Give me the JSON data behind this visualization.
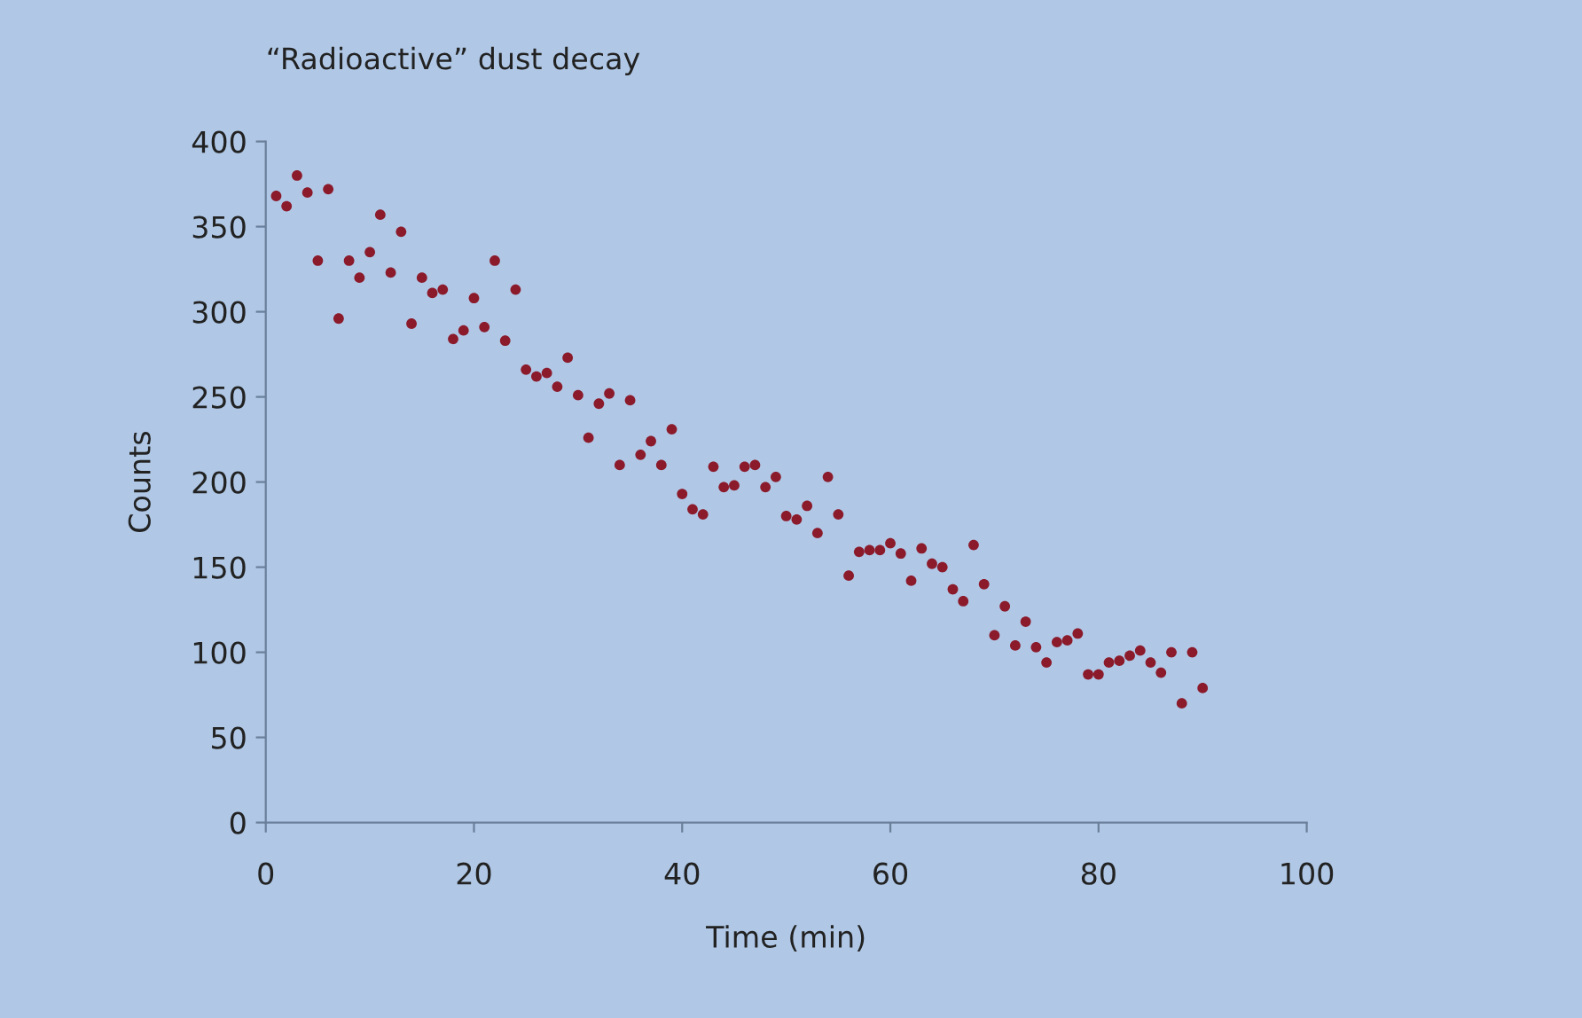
{
  "chart_data": {
    "type": "scatter",
    "title": "“Radioactive” dust decay",
    "xlabel": "Time (min)",
    "ylabel": "Counts",
    "x": [
      1,
      2,
      3,
      4,
      5,
      6,
      7,
      8,
      9,
      10,
      11,
      12,
      13,
      14,
      15,
      16,
      17,
      18,
      19,
      20,
      21,
      22,
      23,
      24,
      25,
      26,
      27,
      28,
      29,
      30,
      31,
      32,
      33,
      34,
      35,
      36,
      37,
      38,
      39,
      40,
      41,
      42,
      43,
      44,
      45,
      46,
      47,
      48,
      49,
      50,
      51,
      52,
      53,
      54,
      55,
      56,
      57,
      58,
      59,
      60,
      61,
      62,
      63,
      64,
      65,
      66,
      67,
      68,
      69,
      70,
      71,
      72,
      73,
      74,
      75,
      76,
      77,
      78,
      79,
      80,
      81,
      82,
      83,
      84,
      85,
      86,
      87,
      88,
      89,
      90
    ],
    "values": [
      368,
      362,
      380,
      370,
      330,
      372,
      296,
      330,
      320,
      335,
      357,
      323,
      347,
      293,
      320,
      311,
      313,
      284,
      289,
      308,
      291,
      330,
      283,
      313,
      266,
      262,
      264,
      256,
      273,
      251,
      226,
      246,
      252,
      210,
      248,
      216,
      224,
      210,
      231,
      193,
      184,
      181,
      209,
      197,
      198,
      209,
      210,
      197,
      203,
      180,
      178,
      186,
      170,
      203,
      181,
      145,
      159,
      160,
      160,
      164,
      158,
      142,
      161,
      152,
      150,
      137,
      130,
      163,
      140,
      110,
      127,
      104,
      118,
      103,
      94,
      106,
      107,
      111,
      87,
      87,
      94,
      95,
      98,
      101,
      94,
      88,
      100,
      70,
      100,
      79
    ],
    "color": "#8b1a2b",
    "marker": "circle",
    "xlim": [
      0,
      100
    ],
    "ylim": [
      0,
      400
    ],
    "xticks": [
      0,
      20,
      40,
      60,
      80,
      100
    ],
    "yticks": [
      0,
      50,
      100,
      150,
      200,
      250,
      300,
      350,
      400
    ],
    "grid": false,
    "legend": false
  }
}
